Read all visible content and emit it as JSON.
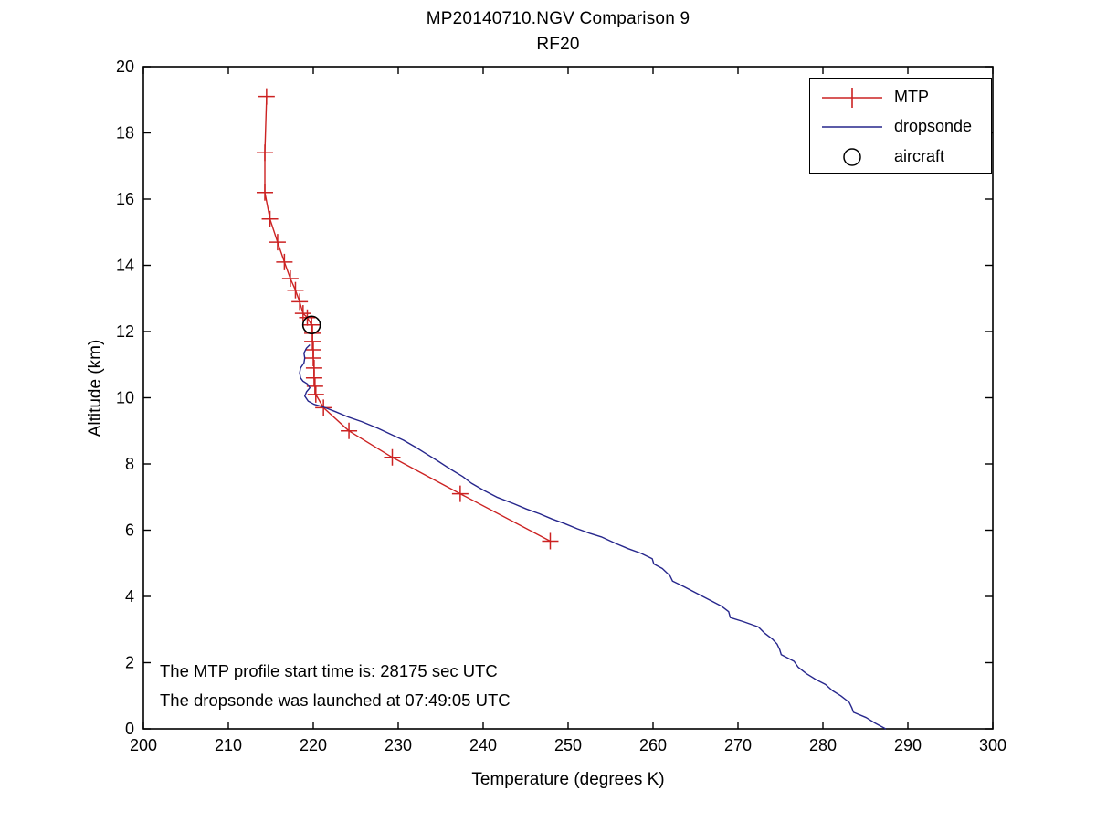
{
  "title": {
    "line1": "MP20140710.NGV Comparison 9",
    "line2": "RF20"
  },
  "axes": {
    "xlabel": "Temperature (degrees K)",
    "ylabel": "Altitude (km)",
    "xlim": [
      200,
      300
    ],
    "ylim": [
      0,
      20
    ],
    "xticks": [
      200,
      210,
      220,
      230,
      240,
      250,
      260,
      270,
      280,
      290,
      300
    ],
    "yticks": [
      0,
      2,
      4,
      6,
      8,
      10,
      12,
      14,
      16,
      18,
      20
    ]
  },
  "legend": {
    "items": [
      {
        "label": "MTP",
        "type": "line-plus",
        "color": "#cc2222"
      },
      {
        "label": "dropsonde",
        "type": "line",
        "color": "#26268c"
      },
      {
        "label": "aircraft",
        "type": "open-circle",
        "color": "#000000"
      }
    ]
  },
  "annotations": [
    "The MTP profile start time is: 28175 sec UTC",
    "The dropsonde was launched at 07:49:05 UTC"
  ],
  "colors": {
    "mtp": "#cc2222",
    "dropsonde": "#26268c",
    "aircraft": "#000000",
    "axis": "#000000",
    "background": "#ffffff"
  },
  "chart_data": {
    "type": "line",
    "title": "MP20140710.NGV Comparison 9 — RF20",
    "xlabel": "Temperature (degrees K)",
    "ylabel": "Altitude (km)",
    "xlim": [
      200,
      300
    ],
    "ylim": [
      0,
      20
    ],
    "grid": false,
    "legend_position": "upper right",
    "series": [
      {
        "name": "MTP",
        "color": "#cc2222",
        "marker": "plus",
        "points": [
          [
            214.5,
            19.1
          ],
          [
            214.3,
            17.4
          ],
          [
            214.3,
            16.2
          ],
          [
            214.9,
            15.4
          ],
          [
            215.8,
            14.7
          ],
          [
            216.6,
            14.1
          ],
          [
            217.3,
            13.6
          ],
          [
            217.9,
            13.25
          ],
          [
            218.4,
            12.9
          ],
          [
            218.8,
            12.55
          ],
          [
            219.3,
            12.42
          ],
          [
            219.8,
            12.2
          ],
          [
            219.9,
            11.95
          ],
          [
            219.9,
            11.7
          ],
          [
            220.0,
            11.45
          ],
          [
            220.0,
            11.2
          ],
          [
            220.1,
            10.9
          ],
          [
            220.1,
            10.6
          ],
          [
            220.2,
            10.35
          ],
          [
            220.3,
            10.1
          ],
          [
            221.2,
            9.7
          ],
          [
            224.2,
            9.0
          ],
          [
            229.3,
            8.2
          ],
          [
            237.3,
            7.1
          ],
          [
            247.9,
            5.67
          ]
        ]
      },
      {
        "name": "dropsonde",
        "color": "#26268c",
        "marker": "none",
        "points": [
          [
            219.6,
            11.6
          ],
          [
            219.2,
            11.5
          ],
          [
            218.9,
            11.35
          ],
          [
            219.0,
            11.2
          ],
          [
            218.9,
            11.05
          ],
          [
            218.5,
            10.9
          ],
          [
            218.4,
            10.75
          ],
          [
            218.5,
            10.6
          ],
          [
            218.8,
            10.5
          ],
          [
            219.3,
            10.42
          ],
          [
            219.6,
            10.3
          ],
          [
            219.2,
            10.18
          ],
          [
            219.0,
            10.05
          ],
          [
            219.4,
            9.9
          ],
          [
            220.1,
            9.8
          ],
          [
            221.2,
            9.72
          ],
          [
            222.6,
            9.58
          ],
          [
            224.1,
            9.42
          ],
          [
            225.7,
            9.28
          ],
          [
            227.6,
            9.08
          ],
          [
            229.1,
            8.9
          ],
          [
            230.6,
            8.72
          ],
          [
            232.1,
            8.5
          ],
          [
            233.1,
            8.34
          ],
          [
            234.6,
            8.1
          ],
          [
            236.1,
            7.85
          ],
          [
            237.6,
            7.62
          ],
          [
            238.6,
            7.42
          ],
          [
            240.1,
            7.2
          ],
          [
            241.6,
            7.0
          ],
          [
            243.6,
            6.8
          ],
          [
            245.1,
            6.64
          ],
          [
            246.6,
            6.5
          ],
          [
            248.1,
            6.34
          ],
          [
            249.6,
            6.2
          ],
          [
            251.1,
            6.04
          ],
          [
            252.6,
            5.9
          ],
          [
            253.9,
            5.8
          ],
          [
            255.6,
            5.6
          ],
          [
            257.1,
            5.44
          ],
          [
            258.6,
            5.3
          ],
          [
            259.9,
            5.14
          ],
          [
            260.1,
            4.98
          ],
          [
            261.1,
            4.84
          ],
          [
            262.0,
            4.62
          ],
          [
            262.3,
            4.46
          ],
          [
            263.6,
            4.3
          ],
          [
            265.1,
            4.1
          ],
          [
            266.6,
            3.9
          ],
          [
            268.1,
            3.7
          ],
          [
            268.9,
            3.54
          ],
          [
            269.1,
            3.36
          ],
          [
            270.6,
            3.24
          ],
          [
            272.4,
            3.08
          ],
          [
            273.1,
            2.9
          ],
          [
            274.1,
            2.7
          ],
          [
            274.6,
            2.56
          ],
          [
            274.9,
            2.4
          ],
          [
            275.1,
            2.24
          ],
          [
            276.6,
            2.04
          ],
          [
            277.1,
            1.86
          ],
          [
            278.1,
            1.66
          ],
          [
            279.1,
            1.5
          ],
          [
            280.3,
            1.34
          ],
          [
            281.1,
            1.16
          ],
          [
            282.1,
            1.0
          ],
          [
            283.1,
            0.8
          ],
          [
            283.4,
            0.64
          ],
          [
            283.6,
            0.5
          ],
          [
            285.1,
            0.34
          ],
          [
            286.1,
            0.18
          ],
          [
            287.4,
            0.0
          ]
        ]
      },
      {
        "name": "aircraft",
        "color": "#000000",
        "marker": "open-circle",
        "points": [
          [
            219.8,
            12.2
          ]
        ]
      }
    ]
  }
}
